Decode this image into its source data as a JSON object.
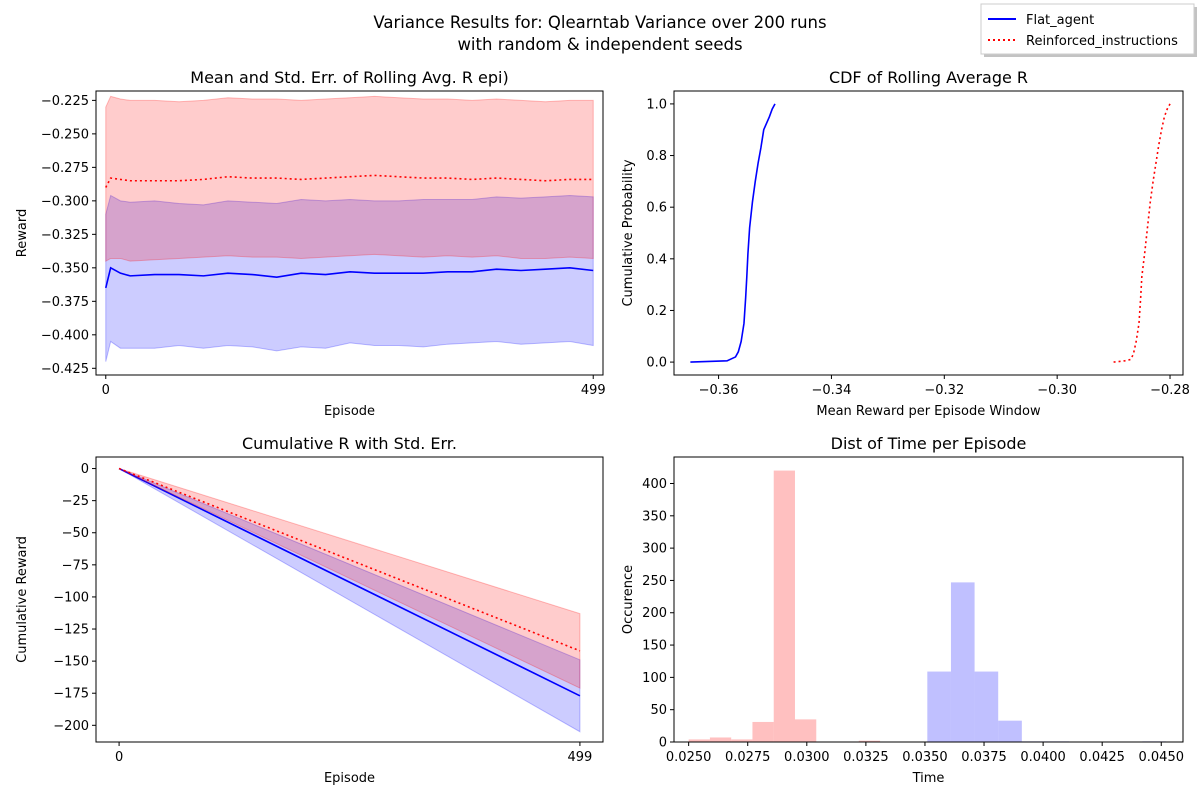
{
  "figure": {
    "title_line1": "Variance Results for: Qlearntab Variance over 200 runs",
    "title_line2": "with random & independent seeds"
  },
  "legend": {
    "placement": "top-right",
    "entries": [
      {
        "label": "Flat_agent",
        "color": "#0000ff",
        "style": "solid"
      },
      {
        "label": "Reinforced_instructions",
        "color": "#ff0000",
        "style": "dotted"
      }
    ]
  },
  "chart_data": [
    {
      "id": "rolling",
      "type": "line",
      "title": "Mean and Std. Err. of Rolling Avg. R epi)",
      "xlabel": "Episode",
      "ylabel": "Reward",
      "xlim": [
        -10,
        509
      ],
      "ylim": [
        -0.43,
        -0.218
      ],
      "xticks": [
        0,
        499
      ],
      "yticks": [
        -0.225,
        -0.25,
        -0.275,
        -0.3,
        -0.325,
        -0.35,
        -0.375,
        -0.4,
        -0.425
      ],
      "ytick_labels": [
        "−0.225",
        "−0.250",
        "−0.275",
        "−0.300",
        "−0.325",
        "−0.350",
        "−0.375",
        "−0.400",
        "−0.425"
      ],
      "series": [
        {
          "name": "Flat_agent",
          "color": "#0000ff",
          "style": "solid",
          "x": [
            0,
            5,
            15,
            25,
            50,
            75,
            100,
            125,
            150,
            175,
            200,
            225,
            250,
            275,
            300,
            325,
            350,
            375,
            400,
            425,
            450,
            475,
            499
          ],
          "mean": [
            -0.365,
            -0.35,
            -0.354,
            -0.356,
            -0.355,
            -0.355,
            -0.356,
            -0.354,
            -0.355,
            -0.357,
            -0.354,
            -0.355,
            -0.353,
            -0.354,
            -0.354,
            -0.354,
            -0.353,
            -0.353,
            -0.351,
            -0.352,
            -0.351,
            -0.35,
            -0.352
          ],
          "low": [
            -0.42,
            -0.405,
            -0.41,
            -0.41,
            -0.41,
            -0.408,
            -0.41,
            -0.408,
            -0.409,
            -0.412,
            -0.409,
            -0.41,
            -0.406,
            -0.408,
            -0.408,
            -0.409,
            -0.407,
            -0.406,
            -0.405,
            -0.407,
            -0.406,
            -0.405,
            -0.408
          ],
          "high": [
            -0.31,
            -0.296,
            -0.3,
            -0.301,
            -0.3,
            -0.302,
            -0.303,
            -0.3,
            -0.301,
            -0.302,
            -0.299,
            -0.3,
            -0.299,
            -0.3,
            -0.3,
            -0.299,
            -0.299,
            -0.299,
            -0.297,
            -0.298,
            -0.297,
            -0.296,
            -0.297
          ]
        },
        {
          "name": "Reinforced_instructions",
          "color": "#ff0000",
          "style": "dotted",
          "x": [
            0,
            5,
            15,
            25,
            50,
            75,
            100,
            125,
            150,
            175,
            200,
            225,
            250,
            275,
            300,
            325,
            350,
            375,
            400,
            425,
            450,
            475,
            499
          ],
          "mean": [
            -0.29,
            -0.283,
            -0.284,
            -0.285,
            -0.285,
            -0.285,
            -0.284,
            -0.282,
            -0.283,
            -0.283,
            -0.284,
            -0.283,
            -0.282,
            -0.281,
            -0.282,
            -0.283,
            -0.283,
            -0.284,
            -0.283,
            -0.284,
            -0.285,
            -0.284,
            -0.284
          ],
          "low": [
            -0.345,
            -0.343,
            -0.343,
            -0.345,
            -0.344,
            -0.343,
            -0.342,
            -0.341,
            -0.342,
            -0.342,
            -0.343,
            -0.342,
            -0.341,
            -0.34,
            -0.341,
            -0.342,
            -0.341,
            -0.342,
            -0.341,
            -0.343,
            -0.343,
            -0.342,
            -0.343
          ],
          "high": [
            -0.23,
            -0.222,
            -0.224,
            -0.225,
            -0.225,
            -0.226,
            -0.225,
            -0.223,
            -0.224,
            -0.224,
            -0.225,
            -0.224,
            -0.223,
            -0.222,
            -0.223,
            -0.224,
            -0.224,
            -0.225,
            -0.224,
            -0.225,
            -0.226,
            -0.225,
            -0.225
          ]
        }
      ]
    },
    {
      "id": "cdf",
      "type": "line",
      "title": "CDF of Rolling Average R",
      "xlabel": "Mean Reward per Episode Window",
      "ylabel": "Cumulative Probability",
      "xlim": [
        -0.3679,
        -0.2777
      ],
      "ylim": [
        -0.05,
        1.05
      ],
      "xticks": [
        -0.36,
        -0.34,
        -0.32,
        -0.3,
        -0.28
      ],
      "xtick_labels": [
        "−0.36",
        "−0.34",
        "−0.32",
        "−0.30",
        "−0.28"
      ],
      "yticks": [
        0,
        0.2,
        0.4,
        0.6,
        0.8,
        1.0
      ],
      "ytick_labels": [
        "0.0",
        "0.2",
        "0.4",
        "0.6",
        "0.8",
        "1.0"
      ],
      "series": [
        {
          "name": "Flat_agent",
          "color": "#0000ff",
          "style": "solid",
          "x": [
            -0.365,
            -0.3585,
            -0.357,
            -0.3565,
            -0.356,
            -0.3555,
            -0.3552,
            -0.355,
            -0.3548,
            -0.3545,
            -0.354,
            -0.3535,
            -0.353,
            -0.3525,
            -0.352,
            -0.351,
            -0.3505,
            -0.35
          ],
          "y": [
            0,
            0.005,
            0.02,
            0.04,
            0.08,
            0.15,
            0.25,
            0.33,
            0.42,
            0.52,
            0.62,
            0.7,
            0.77,
            0.83,
            0.9,
            0.95,
            0.98,
            1.0
          ]
        },
        {
          "name": "Reinforced_instructions",
          "color": "#ff0000",
          "style": "dotted",
          "x": [
            -0.29,
            -0.288,
            -0.287,
            -0.2865,
            -0.286,
            -0.2855,
            -0.2852,
            -0.285,
            -0.2845,
            -0.284,
            -0.2835,
            -0.283,
            -0.2825,
            -0.282,
            -0.2815,
            -0.281,
            -0.2805,
            -0.28
          ],
          "y": [
            0,
            0.005,
            0.01,
            0.03,
            0.08,
            0.15,
            0.25,
            0.33,
            0.42,
            0.52,
            0.62,
            0.7,
            0.77,
            0.84,
            0.9,
            0.95,
            0.98,
            1.0
          ]
        }
      ]
    },
    {
      "id": "cumulative",
      "type": "line",
      "title": "Cumulative R with Std. Err.",
      "xlabel": "Episode",
      "ylabel": "Cumulative Reward",
      "xlim": [
        -25,
        524
      ],
      "ylim": [
        -213,
        9
      ],
      "xticks": [
        0,
        499
      ],
      "yticks": [
        0,
        -25,
        -50,
        -75,
        -100,
        -125,
        -150,
        -175,
        -200
      ],
      "ytick_labels": [
        "0",
        "−25",
        "−50",
        "−75",
        "−100",
        "−125",
        "−150",
        "−175",
        "−200"
      ],
      "series": [
        {
          "name": "Flat_agent",
          "color": "#0000ff",
          "style": "solid",
          "x": [
            0,
            499
          ],
          "mean": [
            0,
            -177
          ],
          "low": [
            0,
            -205
          ],
          "high": [
            0,
            -149
          ]
        },
        {
          "name": "Reinforced_instructions",
          "color": "#ff0000",
          "style": "dotted",
          "x": [
            0,
            499
          ],
          "mean": [
            0,
            -142
          ],
          "low": [
            0,
            -171
          ],
          "high": [
            0,
            -113
          ]
        }
      ]
    },
    {
      "id": "time_hist",
      "type": "bar",
      "title": "Dist of Time per Episode",
      "xlabel": "Time",
      "ylabel": "Occurence",
      "xlim": [
        0.02438,
        0.04592
      ],
      "ylim": [
        0,
        441
      ],
      "xticks": [
        0.025,
        0.0275,
        0.03,
        0.0325,
        0.035,
        0.0375,
        0.04,
        0.0425,
        0.045
      ],
      "xtick_labels": [
        "0.0250",
        "0.0275",
        "0.0300",
        "0.0325",
        "0.0350",
        "0.0375",
        "0.0400",
        "0.0425",
        "0.0450"
      ],
      "yticks": [
        0,
        50,
        100,
        150,
        200,
        250,
        300,
        350,
        400
      ],
      "ytick_labels": [
        "0",
        "50",
        "100",
        "150",
        "200",
        "250",
        "300",
        "350",
        "400"
      ],
      "series": [
        {
          "name": "Reinforced_instructions",
          "color": "#ff9999",
          "bins": [
            [
              0.025,
              0.0259
            ],
            [
              0.0259,
              0.0268
            ],
            [
              0.0268,
              0.0277
            ],
            [
              0.0277,
              0.0286
            ],
            [
              0.0286,
              0.0295
            ],
            [
              0.0295,
              0.0304
            ],
            [
              0.0322,
              0.0331
            ]
          ],
          "counts": [
            4,
            7,
            4,
            31,
            420,
            35,
            2
          ]
        },
        {
          "name": "Flat_agent",
          "color": "#9999ff",
          "bins": [
            [
              0.0351,
              0.0361
            ],
            [
              0.0361,
              0.0371
            ],
            [
              0.0371,
              0.0381
            ],
            [
              0.0381,
              0.0391
            ],
            [
              0.0391,
              0.0401
            ],
            [
              0.0401,
              0.0411
            ],
            [
              0.0442,
              0.0452
            ]
          ],
          "counts": [
            109,
            247,
            109,
            33,
            1,
            1,
            1
          ]
        }
      ]
    }
  ]
}
